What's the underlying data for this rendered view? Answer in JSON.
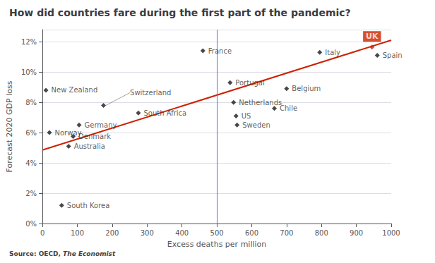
{
  "chart_data": {
    "type": "scatter",
    "title": "How did countries fare during the first part of the pandemic?",
    "xlabel": "Excess deaths per million",
    "ylabel": "Forecast 2020 GDP loss",
    "source": "Source: OECD, ",
    "source_italic": "The Economist",
    "marker": "diamond",
    "labels": [
      "New Zealand",
      "Norway",
      "South Korea",
      "Australia",
      "Denmark",
      "Germany",
      "Switzerland",
      "South Africa",
      "France",
      "Portugal",
      "Netherlands",
      "US",
      "Sweden",
      "Chile",
      "Belgium",
      "Italy",
      "Spain",
      "UK"
    ],
    "x": [
      10,
      20,
      55,
      75,
      88,
      105,
      175,
      275,
      460,
      538,
      548,
      555,
      558,
      665,
      700,
      795,
      960,
      945
    ],
    "values": [
      8.8,
      6.0,
      1.2,
      5.1,
      5.75,
      6.5,
      7.8,
      7.3,
      11.4,
      9.3,
      8.0,
      7.1,
      6.5,
      7.6,
      8.9,
      11.3,
      11.1,
      11.65
    ],
    "colors": [
      "#1a1a1a",
      "#1a1a1a",
      "#1a1a1a",
      "#1a1a1a",
      "#1a1a1a",
      "#1a1a1a",
      "#1a1a1a",
      "#1a1a1a",
      "#1a1a1a",
      "#1a1a1a",
      "#1a1a1a",
      "#1a1a1a",
      "#1a1a1a",
      "#1a1a1a",
      "#1a1a1a",
      "#1a1a1a",
      "#1a1a1a",
      "#cc2200"
    ],
    "highlight": "UK",
    "leader_labels": [
      "Switzerland"
    ],
    "trendline": {
      "type": "line",
      "x": [
        0,
        1000
      ],
      "values": [
        4.85,
        12.1
      ],
      "color": "#cc2200"
    },
    "reference_line": {
      "x": 500
    },
    "xlim": [
      0,
      1000
    ],
    "ylim": [
      0,
      12.8
    ],
    "xticks": [
      0,
      100,
      200,
      300,
      400,
      500,
      600,
      700,
      800,
      900,
      1000
    ],
    "yticks": [
      {
        "value": 0,
        "label": "0%"
      },
      {
        "value": 2,
        "label": "2%"
      },
      {
        "value": 4,
        "label": "4%"
      },
      {
        "value": 6,
        "label": "6%"
      },
      {
        "value": 8,
        "label": "8%"
      },
      {
        "value": 10,
        "label": "10%"
      },
      {
        "value": 12,
        "label": "12%"
      }
    ],
    "grid": "y"
  }
}
